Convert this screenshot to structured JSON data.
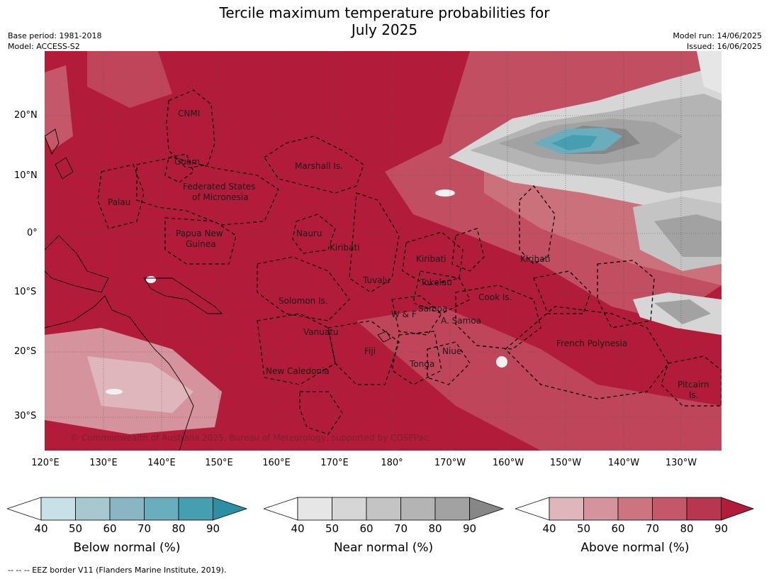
{
  "title_line1": "Tercile maximum temperature probabilities for",
  "title_line2": "July 2025",
  "base_period": "Base period: 1981-2018",
  "model": "Model: ACCESS-S2",
  "model_run": "Model run: 14/06/2025",
  "issued": "Issued: 16/06/2025",
  "lat_labels": [
    "20°N",
    "10°N",
    "0°",
    "10°S",
    "20°S",
    "30°S"
  ],
  "lon_labels": [
    "120°E",
    "130°E",
    "140°E",
    "150°E",
    "160°E",
    "170°E",
    "180°",
    "170°W",
    "160°W",
    "150°W",
    "140°W",
    "130°W"
  ],
  "places": [
    "CNMI",
    "Guam",
    "Marshall Is.",
    "Federated States",
    "of Micronesia",
    "Palau",
    "Papua New",
    "Guinea",
    "Nauru",
    "Kiribati",
    "Kiribati",
    "Kiribati",
    "Tuvalu",
    "Tokelau",
    "Solomon Is.",
    "Cook Is.",
    "W & F",
    "Samoa",
    "A. Samoa",
    "Vanuatu",
    "Fiji",
    "Niue",
    "Tonga",
    "French Polynesia",
    "New Caledonia",
    "Pitcairn",
    "Is."
  ],
  "copyright": "© Commonwealth of Australia 2025, Bureau of Meteorology, supported by COSPPac",
  "colorbars": [
    {
      "label": "Below normal (%)",
      "ticks": [
        "40",
        "50",
        "60",
        "70",
        "80",
        "90"
      ],
      "colors": [
        "#c8e1e8",
        "#a8c8cf",
        "#8ab6c3",
        "#6aadbd",
        "#459fb1",
        "#2d8fa3"
      ]
    },
    {
      "label": "Near normal (%)",
      "ticks": [
        "40",
        "50",
        "60",
        "70",
        "80",
        "90"
      ],
      "colors": [
        "#e6e6e6",
        "#d6d6d6",
        "#c4c4c4",
        "#b4b4b4",
        "#a2a2a2",
        "#878787"
      ]
    },
    {
      "label": "Above normal (%)",
      "ticks": [
        "40",
        "50",
        "60",
        "70",
        "80",
        "90"
      ],
      "colors": [
        "#e0b6bd",
        "#d4939d",
        "#cc7580",
        "#c4576a",
        "#b93650",
        "#b21c3a"
      ]
    }
  ],
  "footer": "--  --  -- EEZ border V11 (Flanders Marine Institute, 2019)."
}
